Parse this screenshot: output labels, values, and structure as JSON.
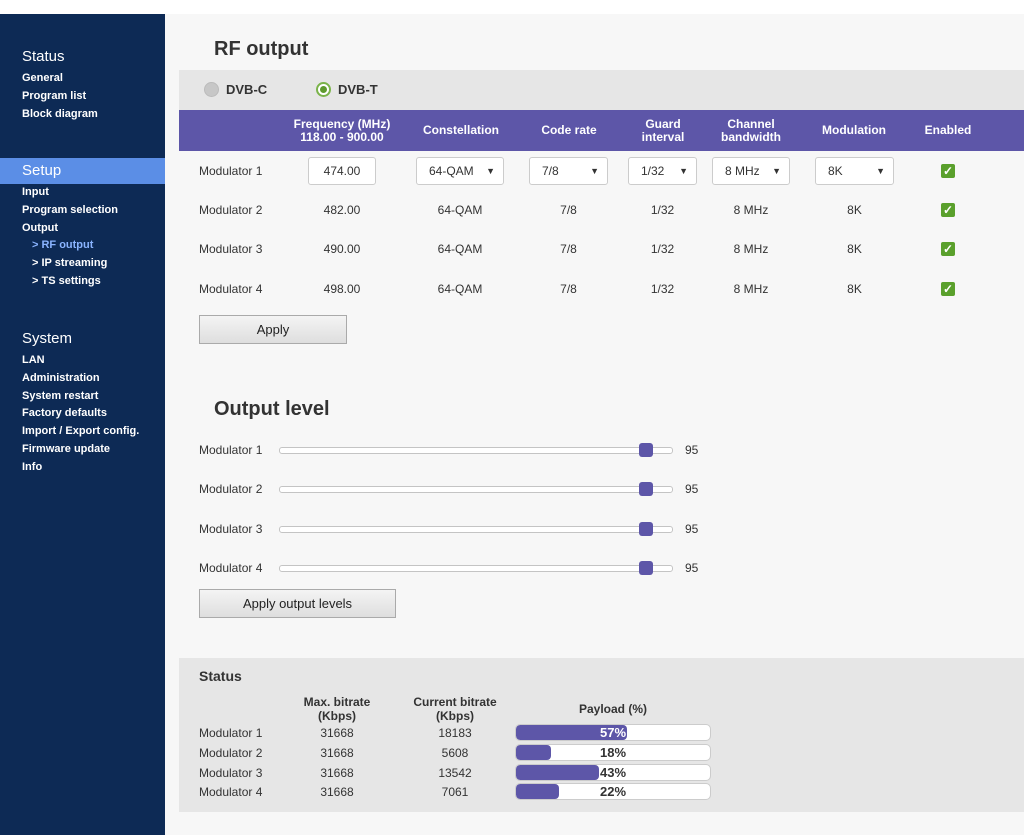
{
  "sidebar": {
    "status": {
      "title": "Status",
      "items": [
        "General",
        "Program list",
        "Block diagram"
      ]
    },
    "setup": {
      "title": "Setup",
      "items": [
        "Input",
        "Program selection",
        "Output"
      ],
      "subitems": [
        "> RF output",
        "> IP streaming",
        "> TS settings"
      ]
    },
    "system": {
      "title": "System",
      "items": [
        "LAN",
        "Administration",
        "System restart",
        "Factory defaults",
        "Import / Export config.",
        "Firmware update",
        "Info"
      ]
    }
  },
  "rf_output": {
    "title": "RF output",
    "modes": [
      {
        "label": "DVB-C",
        "selected": false
      },
      {
        "label": "DVB-T",
        "selected": true
      }
    ],
    "columns": {
      "frequency": "Frequency (MHz)",
      "frequency_range": "118.00 - 900.00",
      "constellation": "Constellation",
      "code_rate": "Code rate",
      "guard_1": "Guard",
      "guard_2": "interval",
      "bandwidth_1": "Channel",
      "bandwidth_2": "bandwidth",
      "modulation": "Modulation",
      "enabled": "Enabled"
    },
    "rows": [
      {
        "name": "Modulator 1",
        "frequency": "474.00",
        "constellation": "64-QAM",
        "code_rate": "7/8",
        "guard": "1/32",
        "bandwidth": "8 MHz",
        "modulation": "8K",
        "enabled": true
      },
      {
        "name": "Modulator 2",
        "frequency": "482.00",
        "constellation": "64-QAM",
        "code_rate": "7/8",
        "guard": "1/32",
        "bandwidth": "8 MHz",
        "modulation": "8K",
        "enabled": true
      },
      {
        "name": "Modulator 3",
        "frequency": "490.00",
        "constellation": "64-QAM",
        "code_rate": "7/8",
        "guard": "1/32",
        "bandwidth": "8 MHz",
        "modulation": "8K",
        "enabled": true
      },
      {
        "name": "Modulator 4",
        "frequency": "498.00",
        "constellation": "64-QAM",
        "code_rate": "7/8",
        "guard": "1/32",
        "bandwidth": "8 MHz",
        "modulation": "8K",
        "enabled": true
      }
    ],
    "apply_label": "Apply"
  },
  "output_level": {
    "title": "Output level",
    "max": 100,
    "rows": [
      {
        "name": "Modulator 1",
        "value": "95"
      },
      {
        "name": "Modulator 2",
        "value": "95"
      },
      {
        "name": "Modulator 3",
        "value": "95"
      },
      {
        "name": "Modulator 4",
        "value": "95"
      }
    ],
    "apply_label": "Apply output levels"
  },
  "status": {
    "title": "Status",
    "headers": {
      "max_1": "Max. bitrate",
      "max_2": "(Kbps)",
      "cur_1": "Current bitrate",
      "cur_2": "(Kbps)",
      "payload": "Payload (%)"
    },
    "rows": [
      {
        "name": "Modulator 1",
        "max": "31668",
        "current": "18183",
        "payload": 57,
        "payload_label": "57%"
      },
      {
        "name": "Modulator 2",
        "max": "31668",
        "current": "5608",
        "payload": 18,
        "payload_label": "18%"
      },
      {
        "name": "Modulator 3",
        "max": "31668",
        "current": "13542",
        "payload": 43,
        "payload_label": "43%"
      },
      {
        "name": "Modulator 4",
        "max": "31668",
        "current": "7061",
        "payload": 22,
        "payload_label": "22%"
      }
    ]
  },
  "colors": {
    "sidebar": "#0d2a55",
    "active": "#5b8ee6",
    "accent": "#5d56a8",
    "check": "#5aa02c"
  }
}
